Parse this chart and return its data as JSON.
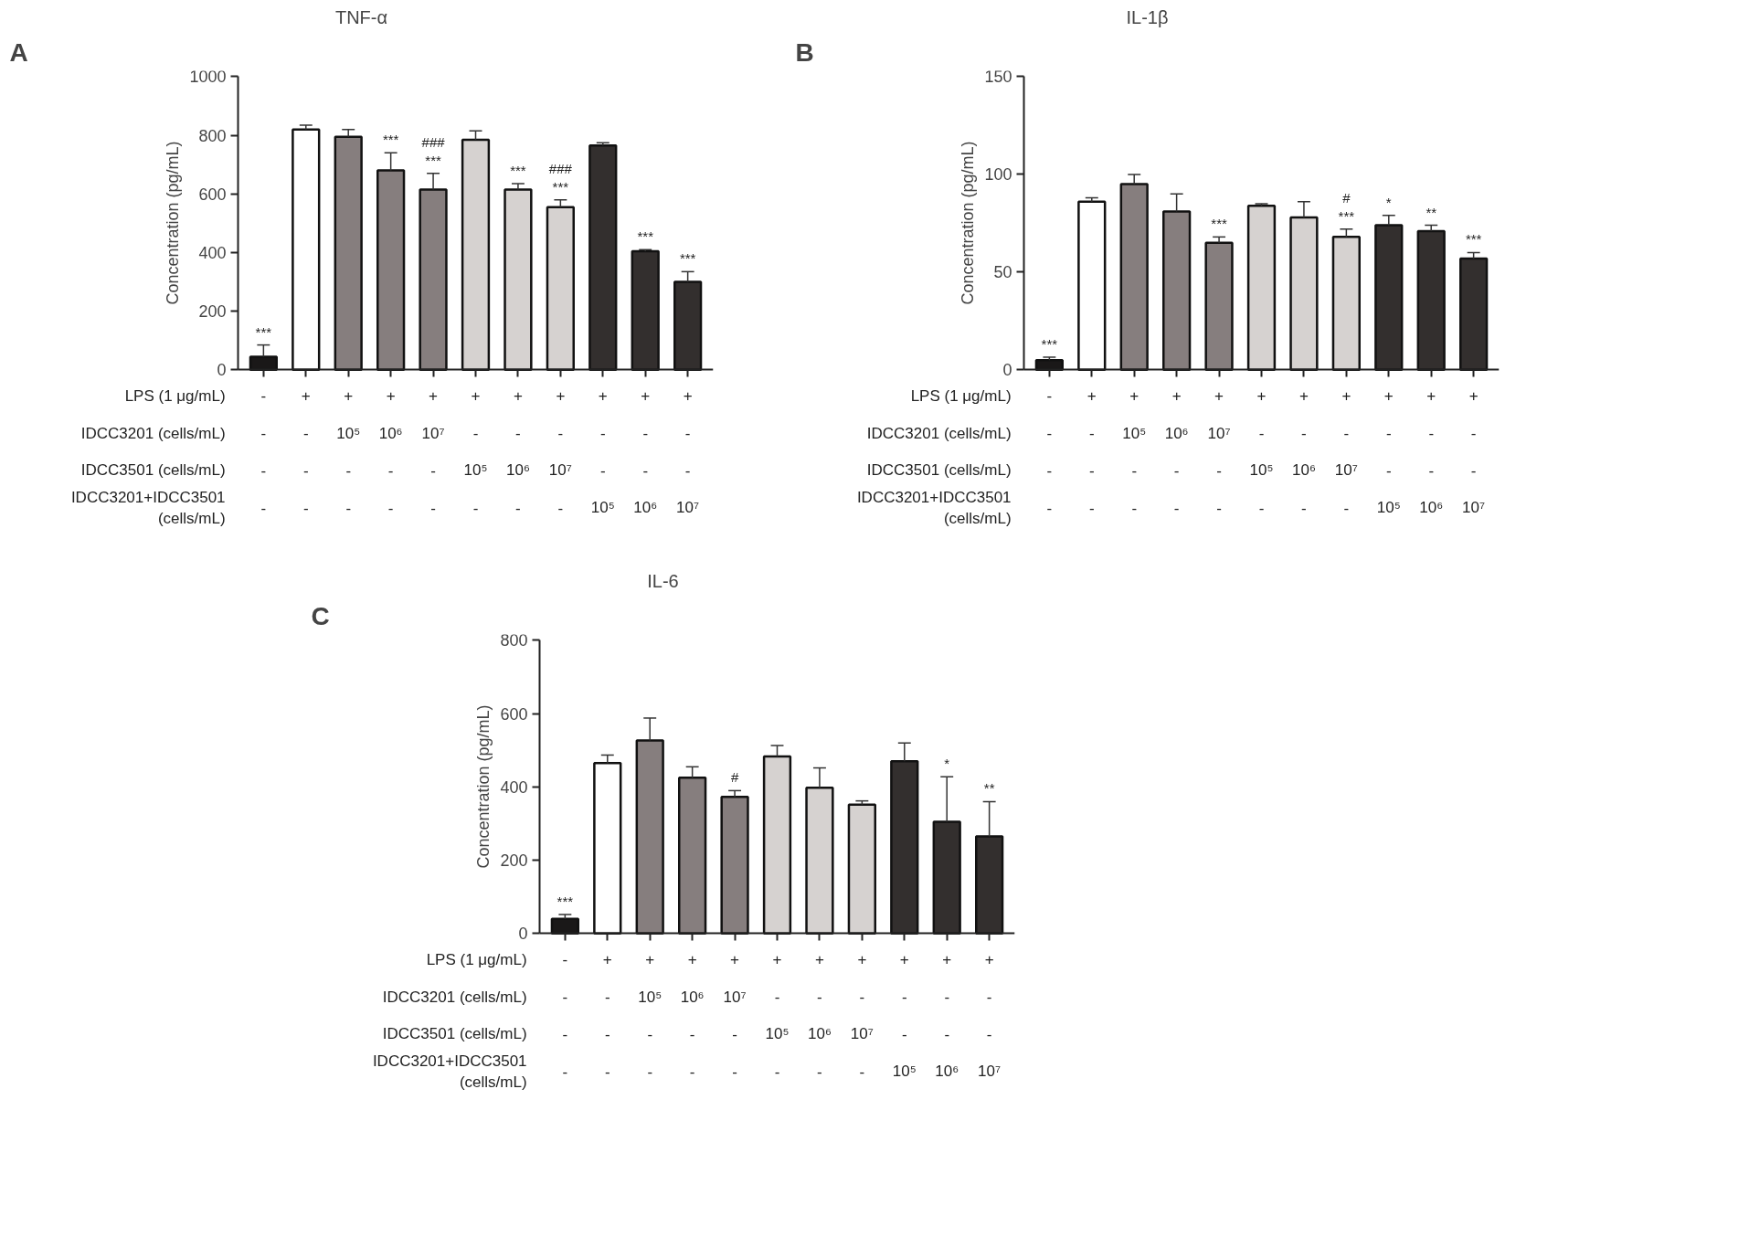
{
  "chart_data": [
    {
      "type": "bar",
      "title": "TNF-α",
      "ylabel": "Concentration (pg/mL)",
      "categories": [
        "-\n-\n-\n-",
        "+\n-\n-\n-",
        "+\n10⁵\n-\n-",
        "+\n10⁶\n-\n-",
        "+\n10⁷\n-\n-",
        "+\n-\n10⁵\n-",
        "+\n-\n10⁶\n-",
        "+\n-\n10⁷\n-",
        "+\n-\n-\n10⁵",
        "+\n-\n-\n10⁶",
        "+\n-\n-\n10⁷"
      ],
      "values": [
        45,
        820,
        795,
        680,
        615,
        785,
        615,
        555,
        765,
        405,
        300
      ],
      "errors": [
        [
          45,
          85
        ],
        [
          820,
          835
        ],
        [
          795,
          820
        ],
        [
          680,
          740
        ],
        [
          615,
          670
        ],
        [
          785,
          815
        ],
        [
          615,
          635
        ],
        [
          555,
          580
        ],
        [
          765,
          775
        ],
        [
          405,
          410
        ],
        [
          300,
          335
        ]
      ],
      "colors": [
        "#1a1818",
        "#ffffff",
        "#867e7e",
        "#867e7e",
        "#867e7e",
        "#d6d2d0",
        "#d6d2d0",
        "#d6d2d0",
        "#332f2e",
        "#332f2e",
        "#332f2e"
      ],
      "ylim": [
        0,
        1000
      ],
      "yticks": [
        0,
        200,
        400,
        600,
        800,
        1000
      ],
      "annotations": [
        "A",
        "LPS (1 μg/mL)",
        "IDCC3201 (cells/mL)",
        "IDCC3501 (cells/mL)",
        "IDCC3201+IDCC3501\n(cells/mL)",
        {
          "text": "***",
          "x": "-\n-\n-\n-",
          "y": 85
        },
        {
          "text": "***",
          "x": "+\n10⁶\n-\n-",
          "y": 740
        },
        {
          "text": "***",
          "x": "+\n10⁷\n-\n-",
          "y": 670
        },
        {
          "text": "###",
          "x": "+\n10⁷\n-\n-",
          "y": 670
        },
        {
          "text": "***",
          "x": "+\n-\n10⁶\n-",
          "y": 635
        },
        {
          "text": "***",
          "x": "+\n-\n10⁷\n-",
          "y": 580
        },
        {
          "text": "###",
          "x": "+\n-\n10⁷\n-",
          "y": 580
        },
        {
          "text": "***",
          "x": "+\n-\n-\n10⁶",
          "y": 410
        },
        {
          "text": "***",
          "x": "+\n-\n-\n10⁷",
          "y": 335
        }
      ]
    },
    {
      "type": "bar",
      "title": "IL-1β",
      "ylabel": "Concentration (pg/mL)",
      "categories": [
        "-\n-\n-\n-",
        "+\n-\n-\n-",
        "+\n10⁵\n-\n-",
        "+\n10⁶\n-\n-",
        "+\n10⁷\n-\n-",
        "+\n-\n10⁵\n-",
        "+\n-\n10⁶\n-",
        "+\n-\n10⁷\n-",
        "+\n-\n-\n10⁵",
        "+\n-\n-\n10⁶",
        "+\n-\n-\n10⁷"
      ],
      "values": [
        5,
        86,
        95,
        81,
        65,
        84,
        78,
        68,
        74,
        71,
        57
      ],
      "errors": [
        [
          5,
          6.5
        ],
        [
          86,
          88
        ],
        [
          95,
          100
        ],
        [
          81,
          90
        ],
        [
          65,
          68
        ],
        [
          84,
          85
        ],
        [
          78,
          86
        ],
        [
          68,
          72
        ],
        [
          74,
          79
        ],
        [
          71,
          74
        ],
        [
          57,
          60
        ]
      ],
      "colors": [
        "#1a1818",
        "#ffffff",
        "#867e7e",
        "#867e7e",
        "#867e7e",
        "#d6d2d0",
        "#d6d2d0",
        "#d6d2d0",
        "#332f2e",
        "#332f2e",
        "#332f2e"
      ],
      "ylim": [
        0,
        150
      ],
      "yticks": [
        0,
        50,
        100,
        150
      ],
      "annotations": [
        "B",
        "LPS (1 μg/mL)",
        "IDCC3201 (cells/mL)",
        "IDCC3501 (cells/mL)",
        "IDCC3201+IDCC3501\n(cells/mL)",
        {
          "text": "***",
          "x": "-\n-\n-\n-",
          "y": 6.5
        },
        {
          "text": "***",
          "x": "+\n10⁷\n-\n-",
          "y": 68
        },
        {
          "text": "***",
          "x": "+\n-\n10⁷\n-",
          "y": 72
        },
        {
          "text": "#",
          "x": "+\n-\n10⁷\n-",
          "y": 72
        },
        {
          "text": "*",
          "x": "+\n-\n-\n10⁵",
          "y": 79
        },
        {
          "text": "**",
          "x": "+\n-\n-\n10⁶",
          "y": 74
        },
        {
          "text": "***",
          "x": "+\n-\n-\n10⁷",
          "y": 60
        }
      ]
    },
    {
      "type": "bar",
      "title": "IL-6",
      "ylabel": "Concentration (pg/mL)",
      "categories": [
        "-\n-\n-\n-",
        "+\n-\n-\n-",
        "+\n10⁵\n-\n-",
        "+\n10⁶\n-\n-",
        "+\n10⁷\n-\n-",
        "+\n-\n10⁵\n-",
        "+\n-\n10⁶\n-",
        "+\n-\n10⁷\n-",
        "+\n-\n-\n10⁵",
        "+\n-\n-\n10⁶",
        "+\n-\n-\n10⁷"
      ],
      "values": [
        40,
        465,
        527,
        425,
        373,
        483,
        398,
        352,
        470,
        305,
        265
      ],
      "errors": [
        [
          40,
          52
        ],
        [
          465,
          487
        ],
        [
          527,
          588
        ],
        [
          425,
          455
        ],
        [
          373,
          390
        ],
        [
          483,
          513
        ],
        [
          398,
          452
        ],
        [
          352,
          362
        ],
        [
          470,
          520
        ],
        [
          305,
          428
        ],
        [
          265,
          360
        ]
      ],
      "colors": [
        "#1a1818",
        "#ffffff",
        "#867e7e",
        "#867e7e",
        "#867e7e",
        "#d6d2d0",
        "#d6d2d0",
        "#d6d2d0",
        "#332f2e",
        "#332f2e",
        "#332f2e"
      ],
      "ylim": [
        0,
        800
      ],
      "yticks": [
        0,
        200,
        400,
        600,
        800
      ],
      "annotations": [
        "C",
        "LPS (1 μg/mL)",
        "IDCC3201 (cells/mL)",
        "IDCC3501 (cells/mL)",
        "IDCC3201+IDCC3501\n(cells/mL)",
        {
          "text": "***",
          "x": "-\n-\n-\n-",
          "y": 52
        },
        {
          "text": "#",
          "x": "+\n10⁷\n-\n-",
          "y": 390
        },
        {
          "text": "*",
          "x": "+\n-\n-\n10⁶",
          "y": 428
        },
        {
          "text": "**",
          "x": "+\n-\n-\n10⁷",
          "y": 360
        }
      ]
    }
  ]
}
